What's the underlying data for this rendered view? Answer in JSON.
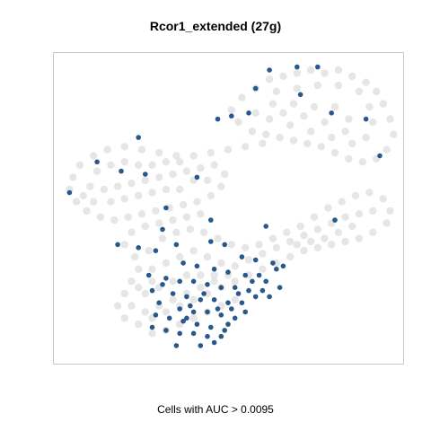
{
  "chart_data": {
    "type": "scatter",
    "title": "Rcor1_extended (27g)",
    "caption": "Cells with AUC > 0.0095",
    "xlabel": "",
    "ylabel": "",
    "axes_shown": false,
    "grid": false,
    "legend": "none",
    "colors": {
      "background_cells": "#dedede",
      "highlight_cells": "#1e4f87",
      "frame": "#c8c8c8"
    },
    "series": [
      {
        "name": "",
        "role": "background",
        "points": [
          [
            0.62,
            0.08
          ],
          [
            0.66,
            0.07
          ],
          [
            0.7,
            0.06
          ],
          [
            0.74,
            0.05
          ],
          [
            0.78,
            0.06
          ],
          [
            0.82,
            0.05
          ],
          [
            0.86,
            0.07
          ],
          [
            0.9,
            0.09
          ],
          [
            0.93,
            0.12
          ],
          [
            0.95,
            0.16
          ],
          [
            0.97,
            0.21
          ],
          [
            0.98,
            0.26
          ],
          [
            0.96,
            0.31
          ],
          [
            0.93,
            0.34
          ],
          [
            0.89,
            0.35
          ],
          [
            0.85,
            0.34
          ],
          [
            0.81,
            0.32
          ],
          [
            0.77,
            0.3
          ],
          [
            0.73,
            0.29
          ],
          [
            0.69,
            0.28
          ],
          [
            0.65,
            0.27
          ],
          [
            0.61,
            0.26
          ],
          [
            0.57,
            0.25
          ],
          [
            0.53,
            0.22
          ],
          [
            0.51,
            0.18
          ],
          [
            0.54,
            0.14
          ],
          [
            0.58,
            0.11
          ],
          [
            0.64,
            0.12
          ],
          [
            0.7,
            0.11
          ],
          [
            0.76,
            0.1
          ],
          [
            0.82,
            0.1
          ],
          [
            0.88,
            0.12
          ],
          [
            0.91,
            0.17
          ],
          [
            0.92,
            0.22
          ],
          [
            0.9,
            0.27
          ],
          [
            0.86,
            0.29
          ],
          [
            0.8,
            0.27
          ],
          [
            0.74,
            0.25
          ],
          [
            0.68,
            0.23
          ],
          [
            0.62,
            0.21
          ],
          [
            0.58,
            0.19
          ],
          [
            0.63,
            0.16
          ],
          [
            0.69,
            0.16
          ],
          [
            0.75,
            0.17
          ],
          [
            0.81,
            0.17
          ],
          [
            0.85,
            0.21
          ],
          [
            0.84,
            0.25
          ],
          [
            0.78,
            0.22
          ],
          [
            0.72,
            0.2
          ],
          [
            0.66,
            0.19
          ],
          [
            0.6,
            0.29
          ],
          [
            0.55,
            0.3
          ],
          [
            0.5,
            0.31
          ],
          [
            0.45,
            0.32
          ],
          [
            0.4,
            0.33
          ],
          [
            0.35,
            0.33
          ],
          [
            0.3,
            0.32
          ],
          [
            0.25,
            0.31
          ],
          [
            0.2,
            0.3
          ],
          [
            0.15,
            0.31
          ],
          [
            0.11,
            0.33
          ],
          [
            0.07,
            0.36
          ],
          [
            0.05,
            0.4
          ],
          [
            0.04,
            0.44
          ],
          [
            0.06,
            0.48
          ],
          [
            0.09,
            0.51
          ],
          [
            0.13,
            0.53
          ],
          [
            0.17,
            0.54
          ],
          [
            0.21,
            0.53
          ],
          [
            0.25,
            0.52
          ],
          [
            0.29,
            0.51
          ],
          [
            0.33,
            0.5
          ],
          [
            0.37,
            0.49
          ],
          [
            0.41,
            0.48
          ],
          [
            0.45,
            0.46
          ],
          [
            0.48,
            0.43
          ],
          [
            0.49,
            0.39
          ],
          [
            0.46,
            0.36
          ],
          [
            0.42,
            0.37
          ],
          [
            0.38,
            0.38
          ],
          [
            0.34,
            0.39
          ],
          [
            0.3,
            0.4
          ],
          [
            0.26,
            0.41
          ],
          [
            0.22,
            0.42
          ],
          [
            0.18,
            0.43
          ],
          [
            0.14,
            0.44
          ],
          [
            0.1,
            0.43
          ],
          [
            0.12,
            0.38
          ],
          [
            0.16,
            0.36
          ],
          [
            0.2,
            0.35
          ],
          [
            0.24,
            0.36
          ],
          [
            0.28,
            0.36
          ],
          [
            0.32,
            0.35
          ],
          [
            0.36,
            0.35
          ],
          [
            0.4,
            0.41
          ],
          [
            0.44,
            0.41
          ],
          [
            0.16,
            0.48
          ],
          [
            0.2,
            0.47
          ],
          [
            0.24,
            0.46
          ],
          [
            0.28,
            0.45
          ],
          [
            0.32,
            0.44
          ],
          [
            0.36,
            0.44
          ],
          [
            0.08,
            0.46
          ],
          [
            0.11,
            0.48
          ],
          [
            0.26,
            0.56
          ],
          [
            0.3,
            0.55
          ],
          [
            0.34,
            0.54
          ],
          [
            0.38,
            0.53
          ],
          [
            0.42,
            0.52
          ],
          [
            0.22,
            0.58
          ],
          [
            0.2,
            0.62
          ],
          [
            0.23,
            0.66
          ],
          [
            0.27,
            0.64
          ],
          [
            0.31,
            0.6
          ],
          [
            0.35,
            0.58
          ],
          [
            0.39,
            0.57
          ],
          [
            0.43,
            0.58
          ],
          [
            0.47,
            0.6
          ],
          [
            0.51,
            0.62
          ],
          [
            0.55,
            0.63
          ],
          [
            0.59,
            0.62
          ],
          [
            0.63,
            0.6
          ],
          [
            0.67,
            0.58
          ],
          [
            0.71,
            0.56
          ],
          [
            0.75,
            0.53
          ],
          [
            0.79,
            0.5
          ],
          [
            0.83,
            0.48
          ],
          [
            0.87,
            0.46
          ],
          [
            0.91,
            0.45
          ],
          [
            0.95,
            0.47
          ],
          [
            0.97,
            0.51
          ],
          [
            0.96,
            0.55
          ],
          [
            0.92,
            0.58
          ],
          [
            0.88,
            0.6
          ],
          [
            0.84,
            0.61
          ],
          [
            0.8,
            0.62
          ],
          [
            0.76,
            0.63
          ],
          [
            0.72,
            0.64
          ],
          [
            0.68,
            0.66
          ],
          [
            0.64,
            0.68
          ],
          [
            0.6,
            0.7
          ],
          [
            0.56,
            0.72
          ],
          [
            0.52,
            0.74
          ],
          [
            0.48,
            0.76
          ],
          [
            0.44,
            0.78
          ],
          [
            0.4,
            0.8
          ],
          [
            0.36,
            0.82
          ],
          [
            0.32,
            0.84
          ],
          [
            0.28,
            0.86
          ],
          [
            0.24,
            0.88
          ],
          [
            0.2,
            0.86
          ],
          [
            0.18,
            0.82
          ],
          [
            0.2,
            0.78
          ],
          [
            0.22,
            0.74
          ],
          [
            0.24,
            0.7
          ],
          [
            0.28,
            0.7
          ],
          [
            0.32,
            0.68
          ],
          [
            0.36,
            0.66
          ],
          [
            0.4,
            0.64
          ],
          [
            0.44,
            0.66
          ],
          [
            0.48,
            0.68
          ],
          [
            0.52,
            0.69
          ],
          [
            0.56,
            0.67
          ],
          [
            0.6,
            0.65
          ],
          [
            0.64,
            0.63
          ],
          [
            0.68,
            0.61
          ],
          [
            0.72,
            0.59
          ],
          [
            0.76,
            0.57
          ],
          [
            0.8,
            0.55
          ],
          [
            0.84,
            0.53
          ],
          [
            0.88,
            0.52
          ],
          [
            0.92,
            0.51
          ],
          [
            0.86,
            0.56
          ],
          [
            0.82,
            0.58
          ],
          [
            0.78,
            0.6
          ],
          [
            0.74,
            0.61
          ],
          [
            0.7,
            0.62
          ],
          [
            0.26,
            0.78
          ],
          [
            0.3,
            0.76
          ],
          [
            0.34,
            0.74
          ],
          [
            0.38,
            0.72
          ],
          [
            0.42,
            0.72
          ],
          [
            0.46,
            0.72
          ],
          [
            0.3,
            0.82
          ],
          [
            0.34,
            0.8
          ],
          [
            0.38,
            0.78
          ],
          [
            0.42,
            0.76
          ],
          [
            0.46,
            0.74
          ],
          [
            0.5,
            0.72
          ],
          [
            0.26,
            0.84
          ],
          [
            0.22,
            0.82
          ],
          [
            0.24,
            0.76
          ],
          [
            0.28,
            0.74
          ],
          [
            0.44,
            0.84
          ],
          [
            0.48,
            0.82
          ],
          [
            0.52,
            0.8
          ],
          [
            0.4,
            0.86
          ],
          [
            0.36,
            0.88
          ],
          [
            0.32,
            0.9
          ],
          [
            0.28,
            0.91
          ]
        ]
      },
      {
        "name": "",
        "role": "highlight",
        "points": [
          [
            0.7,
            0.04
          ],
          [
            0.62,
            0.05
          ],
          [
            0.76,
            0.04
          ],
          [
            0.58,
            0.11
          ],
          [
            0.71,
            0.13
          ],
          [
            0.56,
            0.19
          ],
          [
            0.51,
            0.2
          ],
          [
            0.47,
            0.21
          ],
          [
            0.8,
            0.19
          ],
          [
            0.9,
            0.21
          ],
          [
            0.94,
            0.33
          ],
          [
            0.24,
            0.27
          ],
          [
            0.12,
            0.35
          ],
          [
            0.19,
            0.38
          ],
          [
            0.26,
            0.39
          ],
          [
            0.41,
            0.4
          ],
          [
            0.04,
            0.45
          ],
          [
            0.32,
            0.5
          ],
          [
            0.45,
            0.54
          ],
          [
            0.31,
            0.57
          ],
          [
            0.61,
            0.56
          ],
          [
            0.81,
            0.54
          ],
          [
            0.18,
            0.62
          ],
          [
            0.24,
            0.63
          ],
          [
            0.29,
            0.64
          ],
          [
            0.35,
            0.62
          ],
          [
            0.45,
            0.61
          ],
          [
            0.49,
            0.62
          ],
          [
            0.54,
            0.66
          ],
          [
            0.58,
            0.67
          ],
          [
            0.63,
            0.68
          ],
          [
            0.66,
            0.69
          ],
          [
            0.37,
            0.68
          ],
          [
            0.41,
            0.69
          ],
          [
            0.46,
            0.7
          ],
          [
            0.5,
            0.71
          ],
          [
            0.55,
            0.72
          ],
          [
            0.59,
            0.72
          ],
          [
            0.61,
            0.74
          ],
          [
            0.64,
            0.7
          ],
          [
            0.27,
            0.72
          ],
          [
            0.32,
            0.73
          ],
          [
            0.36,
            0.74
          ],
          [
            0.4,
            0.74
          ],
          [
            0.44,
            0.75
          ],
          [
            0.48,
            0.76
          ],
          [
            0.52,
            0.76
          ],
          [
            0.56,
            0.77
          ],
          [
            0.6,
            0.77
          ],
          [
            0.28,
            0.77
          ],
          [
            0.34,
            0.78
          ],
          [
            0.38,
            0.79
          ],
          [
            0.42,
            0.8
          ],
          [
            0.46,
            0.8
          ],
          [
            0.5,
            0.81
          ],
          [
            0.54,
            0.81
          ],
          [
            0.58,
            0.79
          ],
          [
            0.3,
            0.81
          ],
          [
            0.36,
            0.83
          ],
          [
            0.4,
            0.84
          ],
          [
            0.44,
            0.84
          ],
          [
            0.48,
            0.85
          ],
          [
            0.52,
            0.86
          ],
          [
            0.55,
            0.84
          ],
          [
            0.33,
            0.86
          ],
          [
            0.37,
            0.87
          ],
          [
            0.41,
            0.88
          ],
          [
            0.45,
            0.89
          ],
          [
            0.49,
            0.9
          ],
          [
            0.28,
            0.89
          ],
          [
            0.32,
            0.9
          ],
          [
            0.36,
            0.91
          ],
          [
            0.4,
            0.91
          ],
          [
            0.44,
            0.92
          ],
          [
            0.48,
            0.92
          ],
          [
            0.35,
            0.95
          ],
          [
            0.42,
            0.95
          ],
          [
            0.46,
            0.94
          ],
          [
            0.5,
            0.88
          ],
          [
            0.39,
            0.82
          ],
          [
            0.43,
            0.78
          ],
          [
            0.47,
            0.83
          ],
          [
            0.53,
            0.78
          ],
          [
            0.57,
            0.74
          ],
          [
            0.62,
            0.79
          ],
          [
            0.65,
            0.76
          ],
          [
            0.31,
            0.75
          ],
          [
            0.29,
            0.85
          ],
          [
            0.38,
            0.86
          ],
          [
            0.51,
            0.83
          ]
        ]
      }
    ]
  }
}
